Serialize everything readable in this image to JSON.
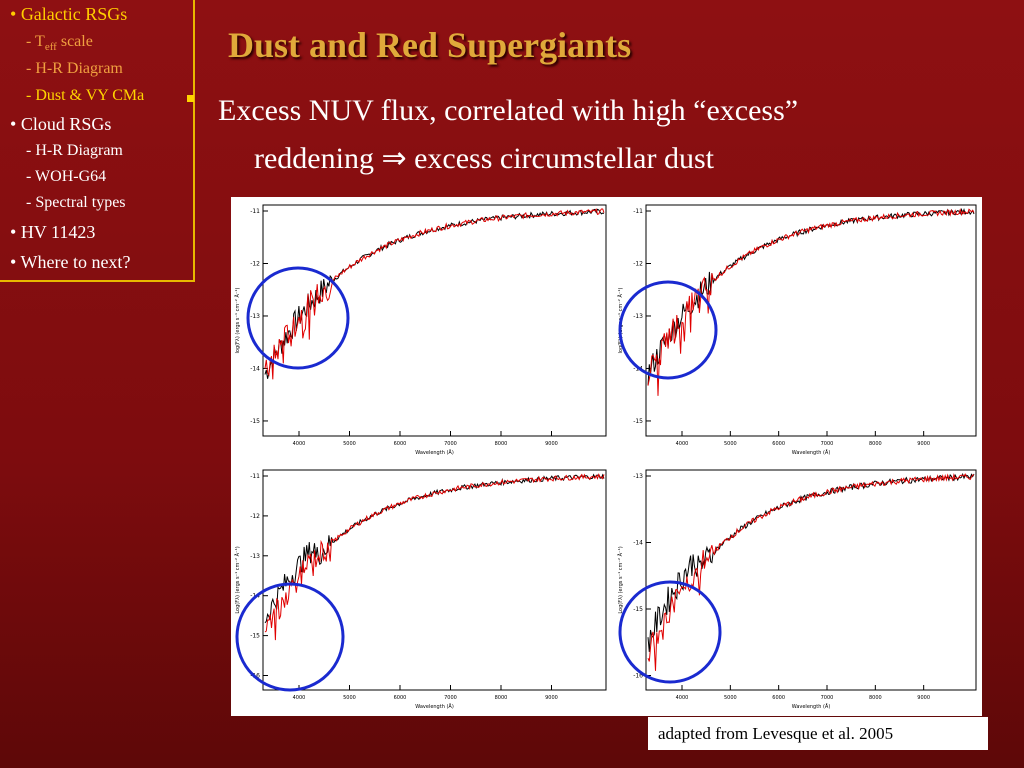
{
  "nav": [
    {
      "label": "Galactic RSGs",
      "level": 0,
      "color": "#ffcc00"
    },
    {
      "label_parts": [
        "T",
        "eff",
        " scale"
      ],
      "level": 1,
      "color": "#f0a040"
    },
    {
      "label": "H-R Diagram",
      "level": 1,
      "color": "#f0a040"
    },
    {
      "label": "Dust & VY CMa",
      "level": 1,
      "color": "#ffd400"
    },
    {
      "label": "Cloud RSGs",
      "level": 0,
      "color": "#ffffff"
    },
    {
      "label": "H-R Diagram",
      "level": 1,
      "color": "#ffffff"
    },
    {
      "label": "WOH-G64",
      "level": 1,
      "color": "#ffffff"
    },
    {
      "label": "Spectral types",
      "level": 1,
      "color": "#ffffff"
    },
    {
      "label": "HV 11423",
      "level": 0,
      "color": "#ffffff"
    },
    {
      "label": "Where to next?",
      "level": 0,
      "color": "#ffffff"
    }
  ],
  "title": "Dust and Red Supergiants",
  "body": [
    "Excess NUV flux, correlated with high “excess”",
    "reddening ⇒ excess circumstellar dust"
  ],
  "plots": [
    {
      "ylabel": "log(Fλ) (ergs s⁻¹ cm⁻² Å⁻¹)",
      "xlabel": "Wavelength (Å)",
      "yticks": [
        "-11",
        "-12",
        "-13",
        "-14",
        "-15"
      ],
      "xticks": [
        "4000",
        "5000",
        "6000",
        "7000",
        "8000",
        "9000"
      ]
    },
    {
      "ylabel": "log(Fλ) (ergs s⁻¹ cm⁻² Å⁻¹)",
      "xlabel": "Wavelength (Å)",
      "yticks": [
        "-11",
        "-12",
        "-13",
        "-14",
        "-15"
      ],
      "xticks": [
        "4000",
        "5000",
        "6000",
        "7000",
        "8000",
        "9000"
      ]
    },
    {
      "ylabel": "Log(Fλ) (ergs s⁻¹ cm⁻² Å⁻¹)",
      "xlabel": "Wavelength (Å)",
      "yticks": [
        "-11",
        "-12",
        "-13",
        "-14",
        "-15",
        "-16"
      ],
      "xticks": [
        "4000",
        "5000",
        "6000",
        "7000",
        "8000",
        "9000"
      ]
    },
    {
      "ylabel": "Log(Fλ) (ergs s⁻¹ cm⁻² Å⁻¹)",
      "xlabel": "Wavelength (Å)",
      "yticks": [
        "-13",
        "-14",
        "-15",
        "-16"
      ],
      "xticks": [
        "4000",
        "5000",
        "6000",
        "7000",
        "8000",
        "9000"
      ]
    }
  ],
  "caption": "adapted from Levesque et al. 2005"
}
